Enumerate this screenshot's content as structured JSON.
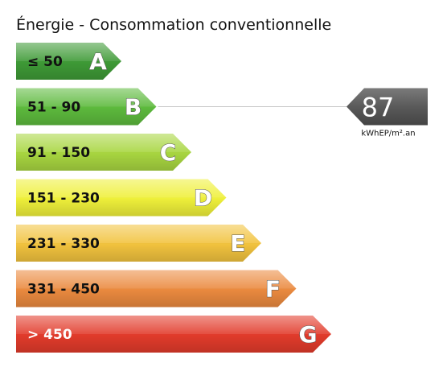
{
  "header": {
    "title": "Énergie - Consommation conventionnelle"
  },
  "classes": [
    {
      "letter": "A",
      "range": "≤ 50",
      "color": "#3e9a36",
      "text_color": "#111111"
    },
    {
      "letter": "B",
      "range": "51 - 90",
      "color": "#5dba3d",
      "text_color": "#111111"
    },
    {
      "letter": "C",
      "range": "91 - 150",
      "color": "#a8d640",
      "text_color": "#111111"
    },
    {
      "letter": "D",
      "range": "151 - 230",
      "color": "#eff03a",
      "text_color": "#111111"
    },
    {
      "letter": "E",
      "range": "231 - 330",
      "color": "#f2c33e",
      "text_color": "#111111"
    },
    {
      "letter": "F",
      "range": "331 - 450",
      "color": "#eb8a3f",
      "text_color": "#111111"
    },
    {
      "letter": "G",
      "range": "> 450",
      "color": "#e23b2b",
      "text_color": "#ffffff"
    }
  ],
  "rating": {
    "value": "87",
    "unit": "kWhEP/m².an",
    "class": "B",
    "marker_color": "#555555"
  }
}
